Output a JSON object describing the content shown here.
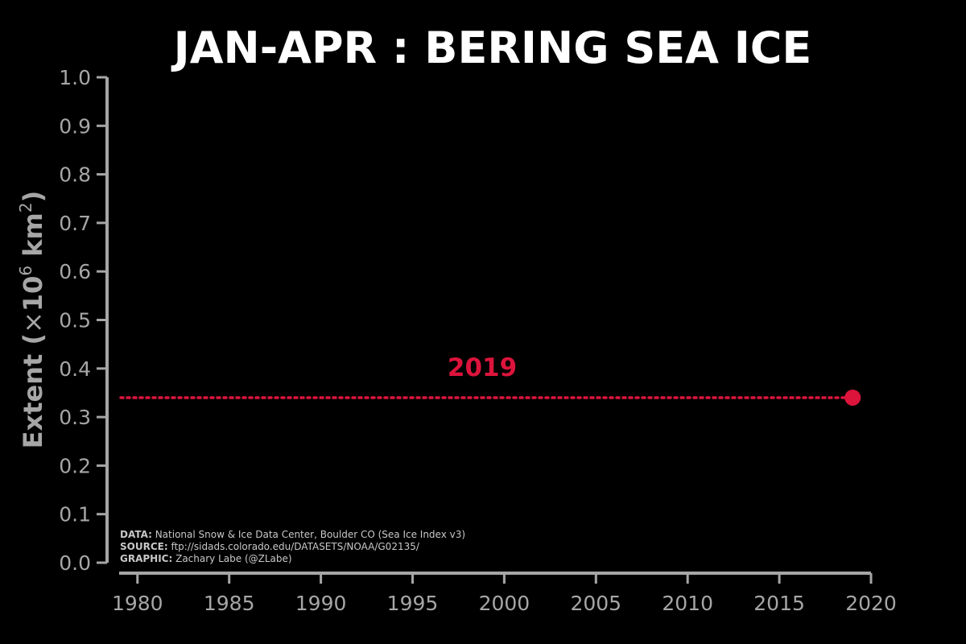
{
  "chart_data": {
    "type": "line",
    "title": "JAN-APR : BERING SEA ICE",
    "ylabel": "Extent (×10⁶ km²)",
    "ylabel_main": "Extent (",
    "ylabel_times": "×",
    "ylabel_base": "10",
    "ylabel_exp": "6",
    "ylabel_unit": " km",
    "ylabel_unit_exp": "2",
    "ylabel_close": ")",
    "xlim": [
      1979,
      2020
    ],
    "ylim": [
      0.0,
      1.0
    ],
    "x_ticks": [
      "1980",
      "1985",
      "1990",
      "1995",
      "2000",
      "2005",
      "2010",
      "2015",
      "2020"
    ],
    "y_ticks": [
      "0.0",
      "0.1",
      "0.2",
      "0.3",
      "0.4",
      "0.5",
      "0.6",
      "0.7",
      "0.8",
      "0.9",
      "1.0"
    ],
    "grid": false,
    "series": [
      {
        "name": "",
        "x": [
          2019
        ],
        "y": [
          0.34
        ],
        "color": "#dc143c"
      }
    ],
    "reference_line": {
      "y": 0.34,
      "x_start": 1979,
      "x_end": 2019,
      "style": "dotted",
      "color": "#dc143c"
    },
    "annotation": {
      "text": "2019",
      "x": 1998.8,
      "y": 0.385,
      "color": "#dc143c"
    },
    "credits": [
      {
        "key": "DATA:",
        "value": " National Snow & Ice Data Center, Boulder CO (Sea Ice Index v3)"
      },
      {
        "key": "SOURCE:",
        "value": " ftp://sidads.colorado.edu/DATASETS/NOAA/G02135/"
      },
      {
        "key": "GRAPHIC:",
        "value": " Zachary Labe (@ZLabe)"
      }
    ]
  },
  "colors": {
    "background": "#000000",
    "axis": "#a6a6a6",
    "title": "#ffffff",
    "highlight": "#dc143c"
  }
}
